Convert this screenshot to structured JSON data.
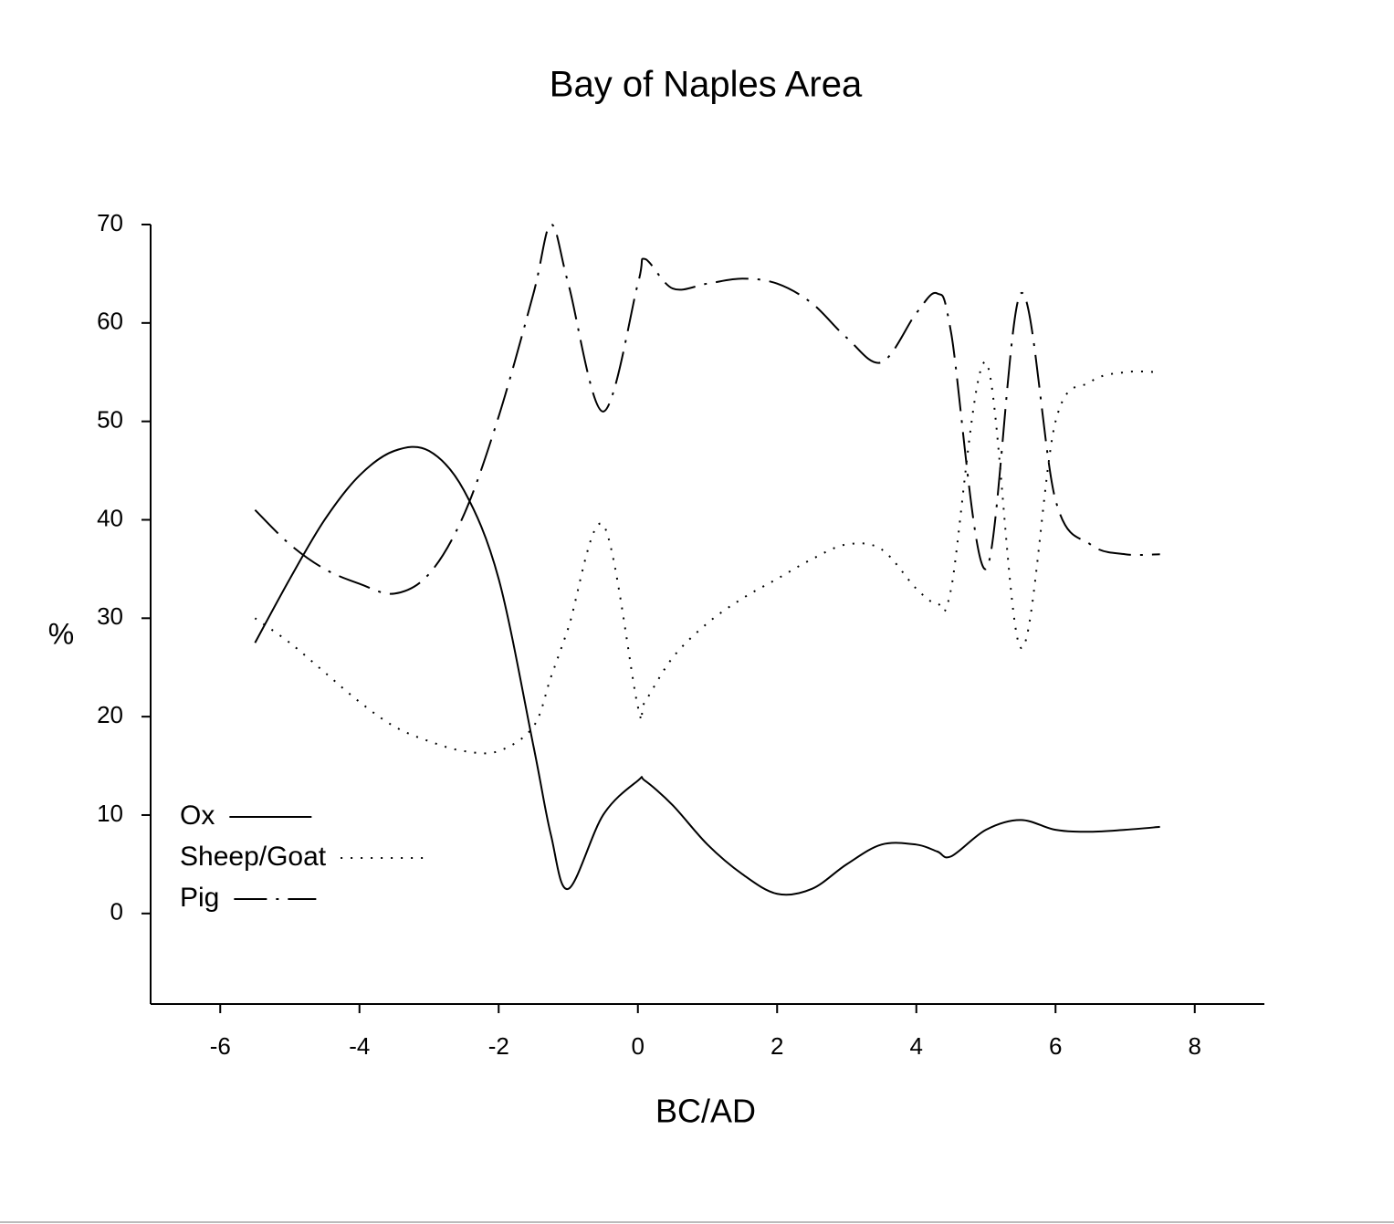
{
  "chart_data": {
    "type": "line",
    "title": "Bay of Naples Area",
    "x_label": "BC/AD",
    "y_label": "%",
    "x": [
      -5.5,
      -5,
      -4.5,
      -4,
      -3.5,
      -3,
      -2.5,
      -2,
      -1.5,
      -1.25,
      -1,
      -0.5,
      0,
      0.1,
      0.5,
      1,
      1.5,
      2,
      2.5,
      3,
      3.5,
      4,
      4.3,
      4.5,
      5,
      5.5,
      6,
      6.5,
      7,
      7.5
    ],
    "series": [
      {
        "name": "Ox",
        "color": "#000000",
        "style": "solid",
        "values": [
          27.5,
          34,
          40,
          44.5,
          47,
          47,
          43,
          34,
          17,
          8,
          2.5,
          10,
          13.5,
          13.5,
          11,
          7,
          4,
          2,
          2.5,
          5,
          7,
          7,
          6.3,
          5.8,
          8.5,
          9.5,
          8.5,
          8.3,
          8.5,
          8.8
        ]
      },
      {
        "name": "Sheep/Goat",
        "color": "#000000",
        "style": "dotted",
        "values": [
          30,
          27.5,
          24.5,
          21.5,
          19,
          17.5,
          16.5,
          16.5,
          19,
          24,
          29,
          39.5,
          21,
          21.5,
          26,
          29.5,
          32,
          34,
          36,
          37.5,
          37,
          33,
          31.5,
          33,
          56,
          27,
          50,
          54,
          55,
          55
        ]
      },
      {
        "name": "Pig",
        "color": "#000000",
        "style": "dashdot",
        "values": [
          41,
          37.5,
          35,
          33.5,
          32.5,
          34.5,
          40.5,
          50.5,
          63,
          70,
          64,
          51,
          64,
          66.5,
          63.5,
          64,
          64.5,
          64,
          62,
          58.5,
          56,
          61,
          63,
          59,
          35,
          63,
          42,
          37.5,
          36.5,
          36.5
        ]
      }
    ],
    "xlim": [
      -7,
      9
    ],
    "xticks": [
      -6,
      -4,
      -2,
      0,
      2,
      4,
      6,
      8
    ],
    "ylim": [
      -9.2,
      70
    ],
    "yticks": [
      0,
      10,
      20,
      30,
      40,
      50,
      60,
      70
    ],
    "grid": false,
    "legend": "lower left"
  }
}
